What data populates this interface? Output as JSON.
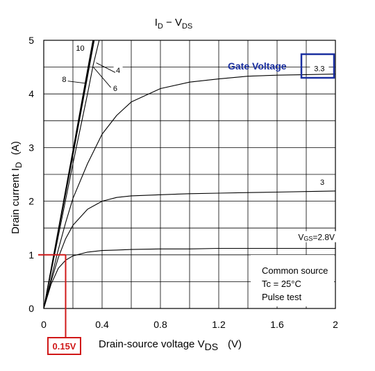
{
  "chart_data": {
    "type": "line",
    "title": "I_D − V_DS",
    "title_main_left": "I",
    "title_sub_left": "D",
    "title_dash": " − V",
    "title_sub_right": "DS",
    "xlabel_main": "Drain-source voltage   V",
    "xlabel_sub": "DS",
    "xlabel_unit": "(V)",
    "ylabel_main": "Drain current   I",
    "ylabel_sub": "D",
    "ylabel_unit": "(A)",
    "xlim": [
      0,
      2
    ],
    "ylim": [
      0,
      5
    ],
    "x_ticks": [
      0,
      0.4,
      0.8,
      1.2,
      1.6,
      2
    ],
    "x_tick_labels": [
      "0",
      "0.4",
      "0.8",
      "1.2",
      "1.6",
      "2"
    ],
    "y_ticks": [
      0,
      1,
      2,
      3,
      4,
      5
    ],
    "y_tick_labels": [
      "0",
      "1",
      "2",
      "3",
      "4",
      "5"
    ],
    "grid": true,
    "series": [
      {
        "name": "10",
        "x": [
          0,
          0.2,
          0.35
        ],
        "y": [
          0,
          2.95,
          5.2
        ]
      },
      {
        "name": "8",
        "x": [
          0,
          0.2,
          0.355
        ],
        "y": [
          0,
          2.9,
          5.2
        ]
      },
      {
        "name": "6",
        "x": [
          0,
          0.2,
          0.36
        ],
        "y": [
          0,
          2.85,
          5.2
        ]
      },
      {
        "name": "4",
        "x": [
          0,
          0.1,
          0.2,
          0.3,
          0.34,
          0.38
        ],
        "y": [
          0,
          1.35,
          2.7,
          4.0,
          4.55,
          5.0
        ]
      },
      {
        "name": "3.3",
        "x": [
          0,
          0.05,
          0.1,
          0.15,
          0.2,
          0.3,
          0.4,
          0.5,
          0.6,
          0.8,
          1.0,
          1.2,
          1.4,
          1.6,
          1.8,
          2.0
        ],
        "y": [
          0,
          0.55,
          1.1,
          1.6,
          2.05,
          2.7,
          3.25,
          3.6,
          3.85,
          4.1,
          4.22,
          4.28,
          4.33,
          4.35,
          4.36,
          4.37
        ]
      },
      {
        "name": "3",
        "x": [
          0,
          0.05,
          0.1,
          0.15,
          0.2,
          0.3,
          0.4,
          0.5,
          0.6,
          0.8,
          1.0,
          1.2,
          1.4,
          1.6,
          1.8,
          2.0
        ],
        "y": [
          0,
          0.5,
          0.95,
          1.3,
          1.55,
          1.85,
          2.0,
          2.07,
          2.1,
          2.12,
          2.14,
          2.15,
          2.16,
          2.17,
          2.18,
          2.19
        ]
      },
      {
        "name": "V_GS=2.8V",
        "x": [
          0,
          0.05,
          0.1,
          0.15,
          0.2,
          0.3,
          0.4,
          0.5,
          0.6,
          0.8,
          1.0,
          1.2,
          1.4,
          1.6,
          1.8,
          2.0
        ],
        "y": [
          0,
          0.45,
          0.75,
          0.9,
          0.98,
          1.05,
          1.08,
          1.09,
          1.1,
          1.11,
          1.11,
          1.12,
          1.12,
          1.12,
          1.12,
          1.12
        ]
      }
    ],
    "curve_labels": [
      {
        "text": "10",
        "x": 0.25,
        "y": 4.83
      },
      {
        "text": "8",
        "x": 0.14,
        "y": 4.25
      },
      {
        "text": "6",
        "x": 0.49,
        "y": 4.08
      },
      {
        "text": "4",
        "x": 0.51,
        "y": 4.42
      },
      {
        "text": "3",
        "x": 1.91,
        "y": 2.33
      },
      {
        "text": "3.3",
        "x": 1.89,
        "y": 4.45
      }
    ],
    "vgs_label_main": "V",
    "vgs_label_sub": "GS",
    "vgs_label_rest": "=2.8V",
    "vgs_label_pos": {
      "x": 1.87,
      "y": 1.3
    },
    "notes": [
      "Common source",
      "Tc = 25°C",
      "Pulse test"
    ],
    "annotations": {
      "gate_voltage_text": "Gate Voltage",
      "gate_voltage_value": "3.3",
      "threshold_current": 1,
      "threshold_voltage": 0.15,
      "threshold_voltage_label": "0.15V",
      "highlight_color": "#d01818",
      "gate_color": "#1a2fa0"
    }
  }
}
